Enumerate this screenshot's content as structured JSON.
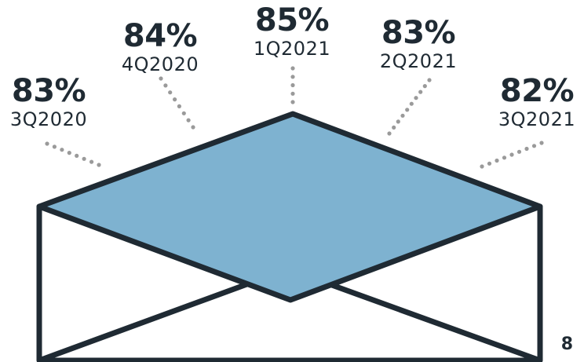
{
  "chart_data": {
    "type": "infographic",
    "categories": [
      "3Q2020",
      "4Q2020",
      "1Q2021",
      "2Q2021",
      "3Q2021"
    ],
    "values": [
      83,
      84,
      85,
      83,
      82
    ],
    "value_labels": [
      "83%",
      "84%",
      "85%",
      "83%",
      "82%"
    ],
    "unit": "%",
    "colors": {
      "flap": "#7eb2d0",
      "outline": "#1f2a33",
      "dots": "#9a9a9a",
      "text": "#1f2a33"
    }
  },
  "page": {
    "number": "8"
  }
}
